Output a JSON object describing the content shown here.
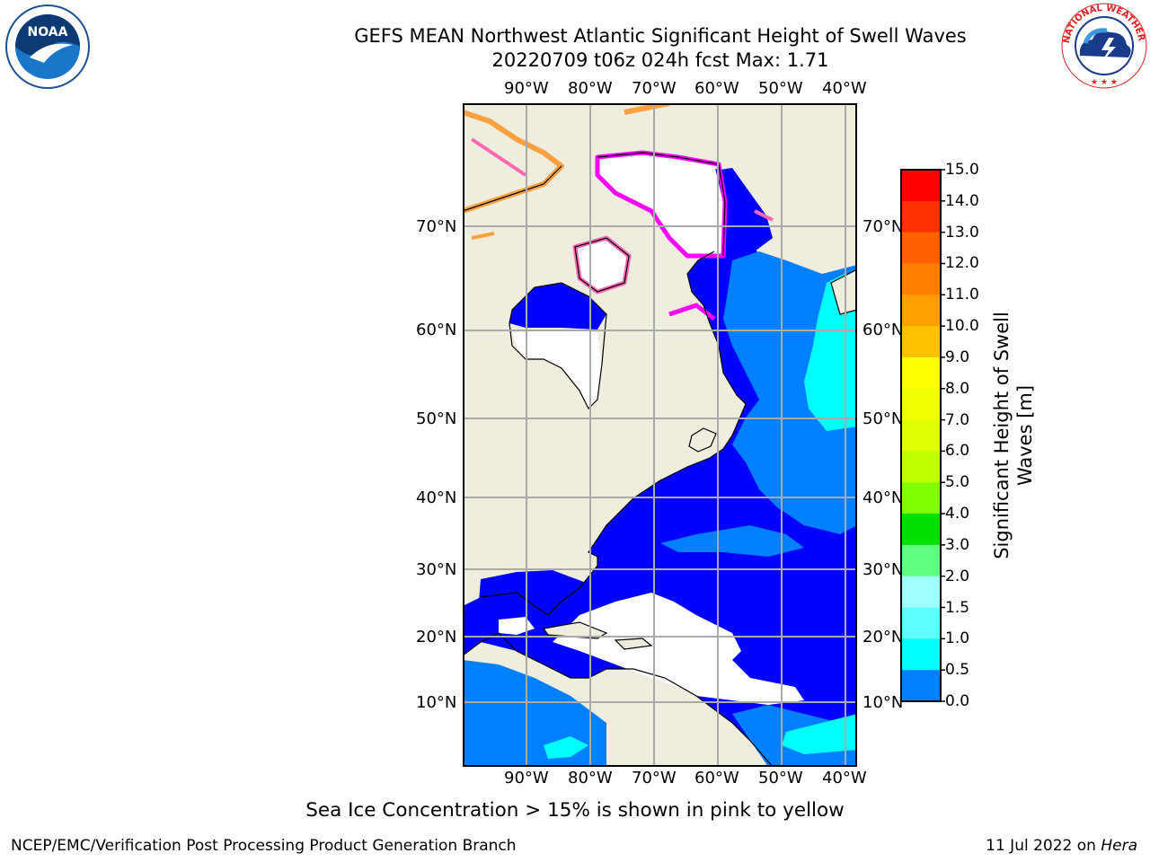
{
  "title": {
    "line1": "GEFS MEAN Northwest Atlantic Significant Height of Swell Waves",
    "line2": "20220709 t06z 024h fcst   Max: 1.71"
  },
  "map": {
    "longitude_labels": [
      "90°W",
      "80°W",
      "70°W",
      "60°W",
      "50°W",
      "40°W"
    ],
    "latitude_labels": [
      "70°N",
      "60°N",
      "50°N",
      "40°N",
      "30°N",
      "20°N",
      "10°N"
    ],
    "land_color": "#efedde",
    "ocean_colors": {
      "0.0-0.5": "#0000ff",
      "0.5-1.0": "#0080ff",
      "1.0-1.5": "#00ffff"
    },
    "sea_ice_colors": [
      "#ff00ff",
      "#ff69b4",
      "#ffa040",
      "#ffd060"
    ],
    "grid": true
  },
  "colorbar": {
    "label": "Significant Height of Swell Waves [m]",
    "label_line1": "Significant Height of Swell",
    "label_line2": "Waves [m]",
    "ticks": [
      "15.0",
      "14.0",
      "13.0",
      "12.0",
      "11.0",
      "10.0",
      "9.0",
      "8.0",
      "7.0",
      "6.0",
      "5.0",
      "4.0",
      "3.0",
      "2.0",
      "1.5",
      "1.0",
      "0.5",
      "0.0"
    ],
    "colors": [
      "#ff0000",
      "#ff3000",
      "#ff6000",
      "#ff8000",
      "#ffa000",
      "#ffc000",
      "#ffff00",
      "#f0ff00",
      "#e0ff00",
      "#c0ff00",
      "#80ff00",
      "#00e000",
      "#60ff80",
      "#a0ffff",
      "#60ffff",
      "#00ffff",
      "#0080ff",
      "#0000ff"
    ]
  },
  "note": "Sea Ice Concentration > 15% is shown in pink to yellow",
  "footer": {
    "left": "NCEP/EMC/Verification Post Processing Product Generation Branch",
    "right_prefix": "11 Jul 2022 on ",
    "right_host": "Hera"
  },
  "logos": {
    "noaa_text": "NOAA",
    "nws_text": "NATIONAL WEATHER SERVICE"
  }
}
